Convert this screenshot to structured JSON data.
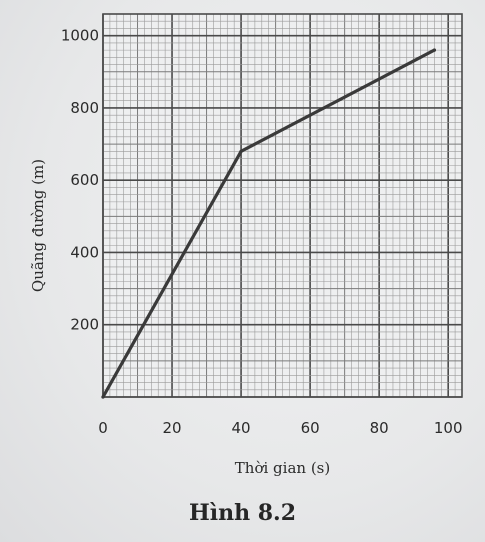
{
  "chart_data": {
    "type": "line",
    "x_ticks": [
      "0",
      "20",
      "40",
      "60",
      "80",
      "100"
    ],
    "y_ticks": [
      "200",
      "400",
      "600",
      "800",
      "1000"
    ],
    "xlabel": "Thời gian (s)",
    "ylabel": "Quãng đường (m)",
    "xlim": [
      0,
      104
    ],
    "ylim": [
      0,
      1060
    ],
    "grid": true,
    "series": [
      {
        "x": [
          0,
          40,
          96
        ],
        "y": [
          0,
          680,
          960
        ]
      }
    ],
    "colors": {
      "line": "#3a3a3a",
      "grid_major": "#4a4a4a",
      "grid_minor": "#7a7a7a",
      "grid_fine": "#9a9a9a"
    }
  },
  "caption": "Hình 8.2"
}
